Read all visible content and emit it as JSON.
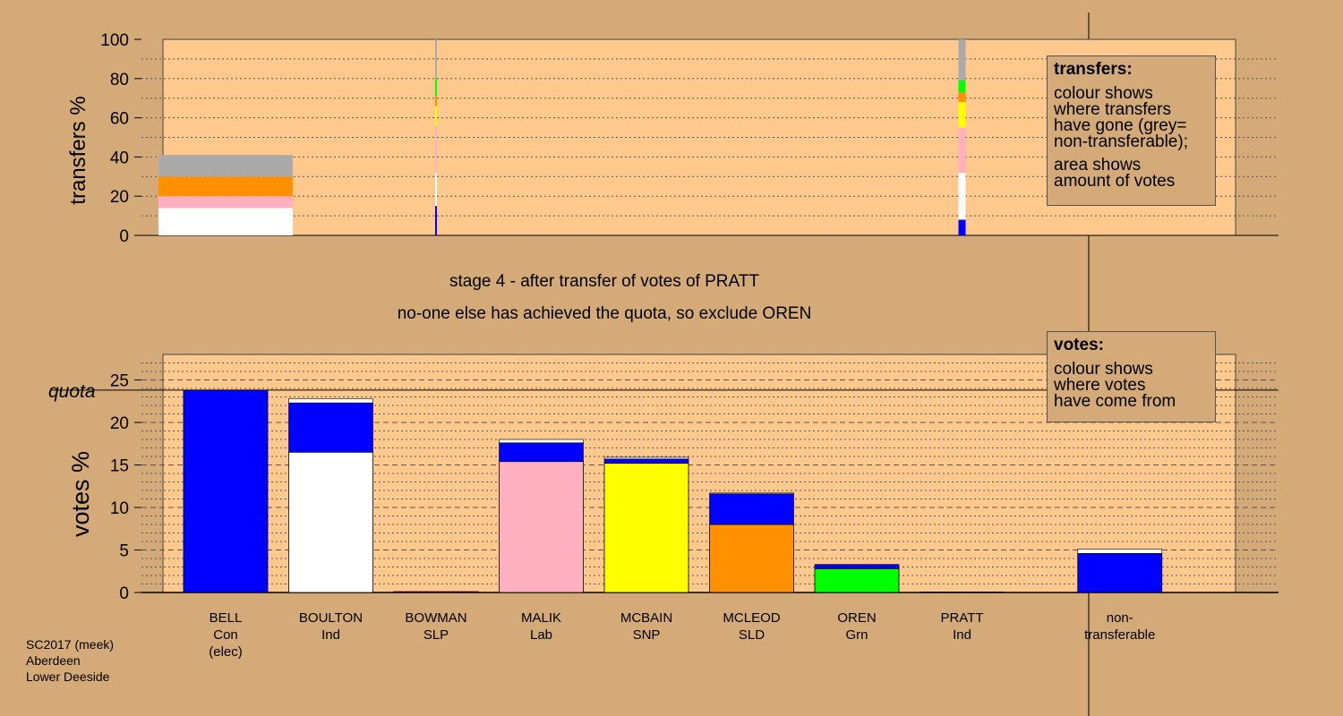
{
  "chart_data": [
    {
      "type": "bar",
      "panel": "transfers",
      "ylabel": "transfers %",
      "ylim": [
        0,
        100
      ],
      "yticks": [
        0,
        20,
        40,
        60,
        80,
        100
      ],
      "bars": [
        {
          "column": 0,
          "width": "wide",
          "segments": [
            {
              "party": "Ind",
              "color": "#ffffff",
              "value": 14
            },
            {
              "party": "Lab",
              "color": "#ffb0c0",
              "value": 6
            },
            {
              "party": "SLD",
              "color": "#ff9000",
              "value": 10
            },
            {
              "party": "non-transferable",
              "color": "#aaaaaa",
              "value": 11
            }
          ]
        },
        {
          "column": 2,
          "width": "thin",
          "segments": [
            {
              "party": "Con",
              "color": "#0000ff",
              "value": 15
            },
            {
              "party": "Ind",
              "color": "#ffffff",
              "value": 17
            },
            {
              "party": "Lab",
              "color": "#ffb0c0",
              "value": 24
            },
            {
              "party": "SNP",
              "color": "#ffff00",
              "value": 10
            },
            {
              "party": "SLD",
              "color": "#ff9000",
              "value": 5
            },
            {
              "party": "Grn",
              "color": "#00ff00",
              "value": 9
            },
            {
              "party": "non-transferable",
              "color": "#aaaaaa",
              "value": 20
            }
          ]
        },
        {
          "column": 7,
          "width": "thin",
          "segments": [
            {
              "party": "Con",
              "color": "#0000ff",
              "value": 8
            },
            {
              "party": "Ind",
              "color": "#ffffff",
              "value": 24
            },
            {
              "party": "Lab",
              "color": "#ffb0c0",
              "value": 23
            },
            {
              "party": "SNP",
              "color": "#ffff00",
              "value": 13
            },
            {
              "party": "SLD",
              "color": "#ff9000",
              "value": 5
            },
            {
              "party": "Grn",
              "color": "#00ff00",
              "value": 6
            },
            {
              "party": "non-transferable",
              "color": "#aaaaaa",
              "value": 21
            }
          ]
        }
      ]
    },
    {
      "type": "bar",
      "panel": "votes",
      "ylabel": "votes %",
      "ylim": [
        0,
        28
      ],
      "yticks": [
        0,
        5,
        10,
        15,
        20,
        25
      ],
      "quota": 23.8,
      "quota_label": "quota",
      "categories": [
        {
          "name": "BELL",
          "party": "Con",
          "note": "(elec)"
        },
        {
          "name": "BOULTON",
          "party": "Ind",
          "note": ""
        },
        {
          "name": "BOWMAN",
          "party": "SLP",
          "note": ""
        },
        {
          "name": "MALIK",
          "party": "Lab",
          "note": ""
        },
        {
          "name": "MCBAIN",
          "party": "SNP",
          "note": ""
        },
        {
          "name": "MCLEOD",
          "party": "SLD",
          "note": ""
        },
        {
          "name": "OREN",
          "party": "Grn",
          "note": ""
        },
        {
          "name": "PRATT",
          "party": "Ind",
          "note": ""
        },
        {
          "name": "non-\ntransferable",
          "party": "",
          "note": ""
        }
      ],
      "stacks": [
        [
          {
            "color": "#0000ff",
            "value": 23.8
          }
        ],
        [
          {
            "color": "#ffffff",
            "value": 16.5
          },
          {
            "color": "#0000ff",
            "value": 5.8
          },
          {
            "color": "#ffffff",
            "value": 0.5
          }
        ],
        [
          {
            "color": "#ff0000",
            "value": 0.1
          }
        ],
        [
          {
            "color": "#ffb0c0",
            "value": 15.4
          },
          {
            "color": "#0000ff",
            "value": 2.2
          },
          {
            "color": "#ffffff",
            "value": 0.4
          }
        ],
        [
          {
            "color": "#ffff00",
            "value": 15.2
          },
          {
            "color": "#0000ff",
            "value": 0.5
          },
          {
            "color": "#ffffff",
            "value": 0.2
          }
        ],
        [
          {
            "color": "#ff9000",
            "value": 8.0
          },
          {
            "color": "#0000ff",
            "value": 3.6
          },
          {
            "color": "#ffffff",
            "value": 0.1
          }
        ],
        [
          {
            "color": "#00ff00",
            "value": 2.8
          },
          {
            "color": "#0000ff",
            "value": 0.5
          }
        ],
        [],
        [
          {
            "color": "#0000ff",
            "value": 4.6
          },
          {
            "color": "#ffffff",
            "value": 0.5
          }
        ]
      ]
    }
  ],
  "messages": {
    "stage": "stage 4 - after transfer of votes of PRATT",
    "action": "no-one else has achieved the quota, so exclude OREN"
  },
  "legend_transfers": {
    "title": "transfers:",
    "p1": "colour shows\nwhere transfers\nhave gone (grey=\nnon-transferable);",
    "p2": "area shows\namount of votes"
  },
  "legend_votes": {
    "title": "votes:",
    "p1": "colour shows\nwhere votes\nhave come from"
  },
  "footer": {
    "line1": "SC2017 (meek)",
    "line2": "Aberdeen",
    "line3": "Lower Deeside"
  }
}
